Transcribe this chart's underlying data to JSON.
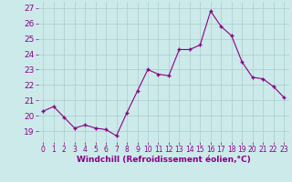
{
  "x": [
    0,
    1,
    2,
    3,
    4,
    5,
    6,
    7,
    8,
    9,
    10,
    11,
    12,
    13,
    14,
    15,
    16,
    17,
    18,
    19,
    20,
    21,
    22,
    23
  ],
  "y": [
    20.3,
    20.6,
    19.9,
    19.2,
    19.4,
    19.2,
    19.1,
    18.7,
    20.2,
    21.6,
    23.0,
    22.7,
    22.6,
    24.3,
    24.3,
    24.6,
    26.8,
    25.8,
    25.2,
    23.5,
    22.5,
    22.4,
    21.9,
    21.2
  ],
  "line_color": "#880088",
  "marker": "+",
  "markersize": 3.5,
  "markeredgewidth": 1.0,
  "linewidth": 0.8,
  "bg_color": "#cceaea",
  "grid_color": "#aacccc",
  "xlabel": "Windchill (Refroidissement éolien,°C)",
  "xlabel_fontsize": 6.5,
  "ylabel_ticks": [
    19,
    20,
    21,
    22,
    23,
    24,
    25,
    26,
    27
  ],
  "ytick_fontsize": 6.5,
  "xtick_fontsize": 5.5,
  "ylim": [
    18.3,
    27.4
  ],
  "xlim": [
    -0.5,
    23.5
  ],
  "label_color": "#880088"
}
